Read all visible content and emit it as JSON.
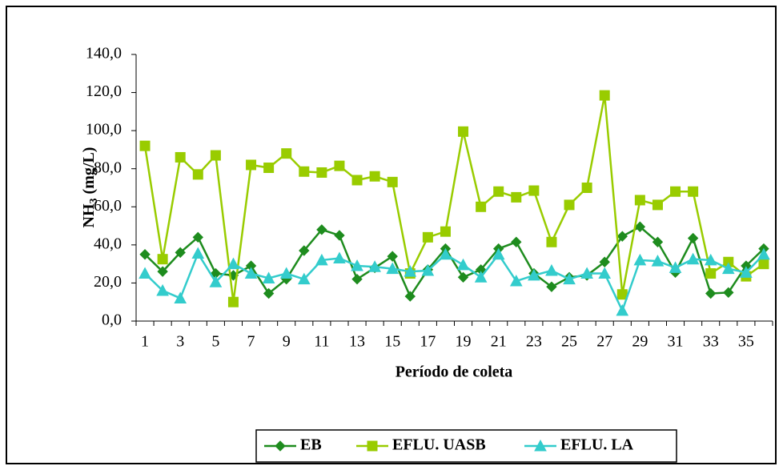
{
  "chart_data": {
    "type": "line",
    "x_label": "Período de coleta",
    "y_label": [
      "NH",
      "3",
      "(mg/L)"
    ],
    "categories": [
      1,
      null,
      3,
      null,
      5,
      null,
      7,
      null,
      9,
      null,
      11,
      null,
      13,
      null,
      15,
      null,
      17,
      null,
      19,
      null,
      21,
      null,
      23,
      null,
      25,
      null,
      27,
      null,
      29,
      null,
      31,
      null,
      33,
      null,
      35,
      null
    ],
    "series": [
      {
        "name": "EB",
        "color": "#1e8c1e",
        "marker": "diamond",
        "values": [
          35,
          26,
          36,
          44,
          25,
          24,
          29,
          14.5,
          22,
          37,
          48,
          45,
          22,
          28,
          34,
          13,
          27,
          38,
          23,
          27,
          38,
          41.5,
          25,
          18,
          23,
          24,
          31,
          44.5,
          49.5,
          41.5,
          25.5,
          43.5,
          14.5,
          15,
          29,
          38
        ]
      },
      {
        "name": "EFLU. UASB",
        "color": "#99cc00",
        "marker": "square",
        "values": [
          92,
          32.5,
          86,
          77,
          87,
          10,
          82,
          80.5,
          88,
          78.5,
          78,
          81.5,
          74,
          76,
          73,
          25,
          44,
          47,
          99.5,
          60,
          68,
          65,
          68.5,
          41.5,
          61,
          70,
          118.5,
          14,
          63.5,
          61,
          68,
          68,
          25,
          31,
          23.5,
          30
        ]
      },
      {
        "name": "EFLU. LA",
        "color": "#33cccc",
        "marker": "triangle",
        "values": [
          25,
          16,
          12,
          35.5,
          20.5,
          30,
          25,
          22.5,
          25,
          22,
          32,
          33,
          29,
          28.5,
          27.5,
          26,
          26.5,
          35,
          29.5,
          23,
          35,
          21,
          24,
          26.5,
          22,
          25,
          25,
          5.5,
          32,
          31.5,
          28,
          32.5,
          32,
          27.5,
          25.5,
          35
        ]
      }
    ],
    "ylim": [
      0,
      140
    ],
    "yticks": [
      {
        "value": 0,
        "label": "0,0"
      },
      {
        "value": 20,
        "label": "20,0"
      },
      {
        "value": 40,
        "label": "40,0"
      },
      {
        "value": 60,
        "label": "60,0"
      },
      {
        "value": 80,
        "label": "80,0"
      },
      {
        "value": 100,
        "label": "100,0"
      },
      {
        "value": 120,
        "label": "120,0"
      },
      {
        "value": 140,
        "label": "140,0"
      }
    ],
    "grid": false,
    "legend": "bottom"
  }
}
